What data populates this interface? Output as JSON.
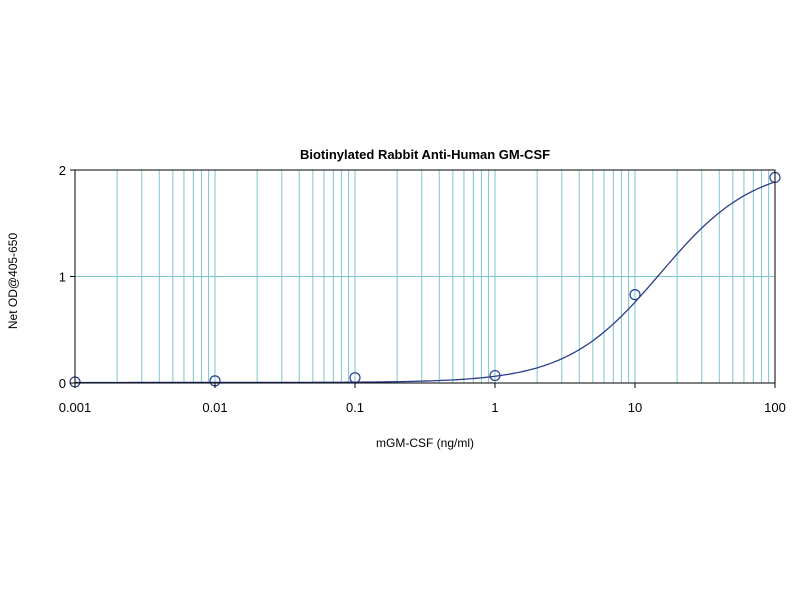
{
  "chart_data": {
    "type": "scatter",
    "title": "Biotinylated Rabbit Anti-Human GM-CSF",
    "xlabel": "mGM-CSF (ng/ml)",
    "ylabel": "Net OD@405-650",
    "x_scale": "log",
    "xlim": [
      0.001,
      100
    ],
    "ylim": [
      0,
      2
    ],
    "x_ticks": [
      0.001,
      0.01,
      0.1,
      1,
      10,
      100
    ],
    "x_tick_labels": [
      "0.001",
      "0.01",
      "0.1",
      "1",
      "10",
      "100"
    ],
    "y_ticks": [
      0,
      1,
      2
    ],
    "y_tick_labels": [
      "0",
      "1",
      "2"
    ],
    "grid": true,
    "legend": "none",
    "series": [
      {
        "points": [
          {
            "x": 0.001,
            "y": 0.01
          },
          {
            "x": 0.01,
            "y": 0.02
          },
          {
            "x": 0.1,
            "y": 0.05
          },
          {
            "x": 1,
            "y": 0.07
          },
          {
            "x": 10,
            "y": 0.83
          },
          {
            "x": 100,
            "y": 1.93
          }
        ],
        "fit": "sigmoid",
        "marker": "open-circle",
        "color": "#2b3d8c"
      }
    ],
    "colors": {
      "grid": "#7fc6d0",
      "series": "#2b3d8c",
      "frame": "#000000"
    }
  }
}
